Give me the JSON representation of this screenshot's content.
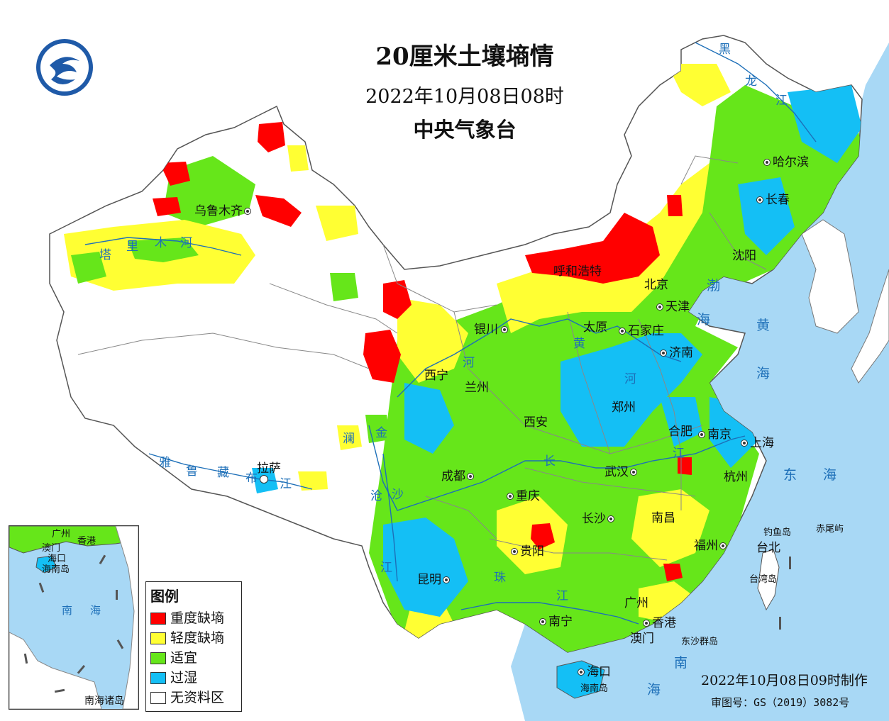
{
  "header": {
    "title": "20厘米土壤墒情",
    "datetime": "2022年10月08日08时",
    "issuer": "中央气象台"
  },
  "legend": {
    "title": "图例",
    "items": [
      {
        "label": "重度缺墒",
        "color": "#ff0000"
      },
      {
        "label": "轻度缺墒",
        "color": "#ffff33"
      },
      {
        "label": "适宜",
        "color": "#66e61a"
      },
      {
        "label": "过湿",
        "color": "#14bff5"
      },
      {
        "label": "无资料区",
        "color": "#ffffff"
      }
    ]
  },
  "cities": [
    {
      "name": "乌鲁木齐"
    },
    {
      "name": "拉萨"
    },
    {
      "name": "西宁"
    },
    {
      "name": "兰州"
    },
    {
      "name": "银川"
    },
    {
      "name": "呼和浩特"
    },
    {
      "name": "北京"
    },
    {
      "name": "天津"
    },
    {
      "name": "太原"
    },
    {
      "name": "石家庄"
    },
    {
      "name": "济南"
    },
    {
      "name": "西安"
    },
    {
      "name": "郑州"
    },
    {
      "name": "合肥"
    },
    {
      "name": "南京"
    },
    {
      "name": "上海"
    },
    {
      "name": "杭州"
    },
    {
      "name": "成都"
    },
    {
      "name": "重庆"
    },
    {
      "name": "武汉"
    },
    {
      "name": "长沙"
    },
    {
      "name": "南昌"
    },
    {
      "name": "福州"
    },
    {
      "name": "贵阳"
    },
    {
      "name": "昆明"
    },
    {
      "name": "南宁"
    },
    {
      "name": "广州"
    },
    {
      "name": "香港"
    },
    {
      "name": "澳门"
    },
    {
      "name": "海口"
    },
    {
      "name": "台北"
    },
    {
      "name": "沈阳"
    },
    {
      "name": "长春"
    },
    {
      "name": "哈尔滨"
    }
  ],
  "rivers": [
    "黑",
    "龙",
    "江",
    "塔",
    "里",
    "木",
    "河",
    "黄",
    "河",
    "河",
    "雅",
    "鲁",
    "藏",
    "布",
    "江",
    "澜",
    "金",
    "沧",
    "沙",
    "长",
    "江",
    "江",
    "珠",
    "江"
  ],
  "seas": [
    "渤",
    "海",
    "黄",
    "海",
    "东",
    "海",
    "南",
    "海"
  ],
  "islands": [
    "钓鱼岛",
    "赤尾屿",
    "台湾岛",
    "东沙群岛",
    "海南岛"
  ],
  "inset": {
    "label": "南海诸岛",
    "sea": [
      "南",
      "海"
    ],
    "places": [
      "广州",
      "香港",
      "澳门",
      "海口",
      "海南岛"
    ]
  },
  "footer": {
    "made_time": "2022年10月08日09时制作",
    "review_no": "审图号：GS（2019）3082号"
  },
  "colors": {
    "sea": "#a8d8f5",
    "severe": "#ff0000",
    "light": "#ffff33",
    "suitable": "#66e61a",
    "wet": "#14bff5",
    "nodata": "#ffffff",
    "border": "#555555",
    "river": "#1d6fb8"
  }
}
